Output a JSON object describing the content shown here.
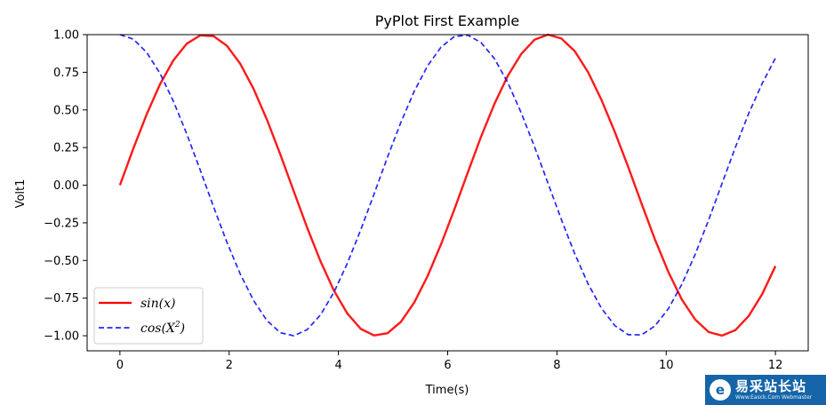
{
  "chart_data": {
    "type": "line",
    "title": "PyPlot First Example",
    "xlabel": "Time(s)",
    "ylabel": "Volt1",
    "xlim": [
      -0.6,
      12.6
    ],
    "ylim": [
      -1.1,
      1.0
    ],
    "xticks": [
      0,
      2,
      4,
      6,
      8,
      10,
      12
    ],
    "xtick_labels": [
      "0",
      "2",
      "4",
      "6",
      "8",
      "10",
      "12"
    ],
    "yticks": [
      1.0,
      0.75,
      0.5,
      0.25,
      0.0,
      -0.25,
      -0.5,
      -0.75,
      -1.0
    ],
    "ytick_labels": [
      "1.00",
      "0.75",
      "0.50",
      "0.25",
      "0.00",
      "−0.25",
      "−0.50",
      "−0.75",
      "−1.00"
    ],
    "grid": false,
    "legend_position": "lower-left",
    "series": [
      {
        "name": "sin(x)",
        "legend_label": "sin(x)",
        "color": "#ff0000",
        "style": "solid",
        "x": [
          0.0,
          0.245,
          0.49,
          0.735,
          0.98,
          1.224,
          1.469,
          1.714,
          1.959,
          2.204,
          2.449,
          2.694,
          2.939,
          3.184,
          3.429,
          3.673,
          3.918,
          4.163,
          4.408,
          4.653,
          4.898,
          5.143,
          5.388,
          5.633,
          5.878,
          6.122,
          6.367,
          6.612,
          6.857,
          7.102,
          7.347,
          7.592,
          7.837,
          8.082,
          8.327,
          8.571,
          8.816,
          9.061,
          9.306,
          9.551,
          9.796,
          10.041,
          10.286,
          10.531,
          10.776,
          11.02,
          11.265,
          11.51,
          11.755,
          12.0
        ],
        "y": [
          0.0,
          0.243,
          0.471,
          0.671,
          0.83,
          0.94,
          0.995,
          0.99,
          0.926,
          0.806,
          0.638,
          0.433,
          0.202,
          -0.042,
          -0.283,
          -0.506,
          -0.7,
          -0.852,
          -0.954,
          -0.998,
          -0.983,
          -0.908,
          -0.779,
          -0.603,
          -0.393,
          -0.161,
          0.083,
          0.323,
          0.541,
          0.727,
          0.872,
          0.967,
          1.0,
          0.974,
          0.89,
          0.75,
          0.566,
          0.352,
          0.12,
          -0.124,
          -0.362,
          -0.577,
          -0.759,
          -0.892,
          -0.975,
          -0.999,
          -0.963,
          -0.869,
          -0.725,
          -0.537
        ]
      },
      {
        "name": "cos(X^2)",
        "legend_label": "cos(X",
        "legend_sup": "2",
        "legend_suffix": ")",
        "color": "#0000ff",
        "style": "dashed",
        "x": [
          0.0,
          0.245,
          0.49,
          0.735,
          0.98,
          1.224,
          1.469,
          1.714,
          1.959,
          2.204,
          2.449,
          2.694,
          2.939,
          3.184,
          3.429,
          3.673,
          3.918,
          4.163,
          4.408,
          4.653,
          4.898,
          5.143,
          5.388,
          5.633,
          5.878,
          6.122,
          6.367,
          6.612,
          6.857,
          7.102,
          7.347,
          7.592,
          7.837,
          8.082,
          8.327,
          8.571,
          8.816,
          9.061,
          9.306,
          9.551,
          9.796,
          10.041,
          10.286,
          10.531,
          10.776,
          11.02,
          11.265,
          11.51,
          11.755,
          12.0
        ],
        "y": [
          1.0,
          0.97,
          0.882,
          0.742,
          0.557,
          0.34,
          0.102,
          -0.143,
          -0.379,
          -0.591,
          -0.767,
          -0.9,
          -0.98,
          -1.0,
          -0.959,
          -0.861,
          -0.711,
          -0.519,
          -0.297,
          -0.058,
          0.186,
          0.417,
          0.624,
          0.793,
          0.917,
          0.987,
          0.997,
          0.947,
          0.84,
          0.68,
          0.48,
          0.253,
          0.013,
          -0.229,
          -0.456,
          -0.656,
          -0.818,
          -0.933,
          -0.993,
          -0.994,
          -0.934,
          -0.82,
          -0.659,
          -0.459,
          -0.232,
          0.009,
          0.25,
          0.476,
          0.674,
          0.844
        ]
      }
    ]
  },
  "watermark": {
    "logo_glyph": "e",
    "title": "易采站长站",
    "url": "Www.Easck.Com Webmaster"
  }
}
